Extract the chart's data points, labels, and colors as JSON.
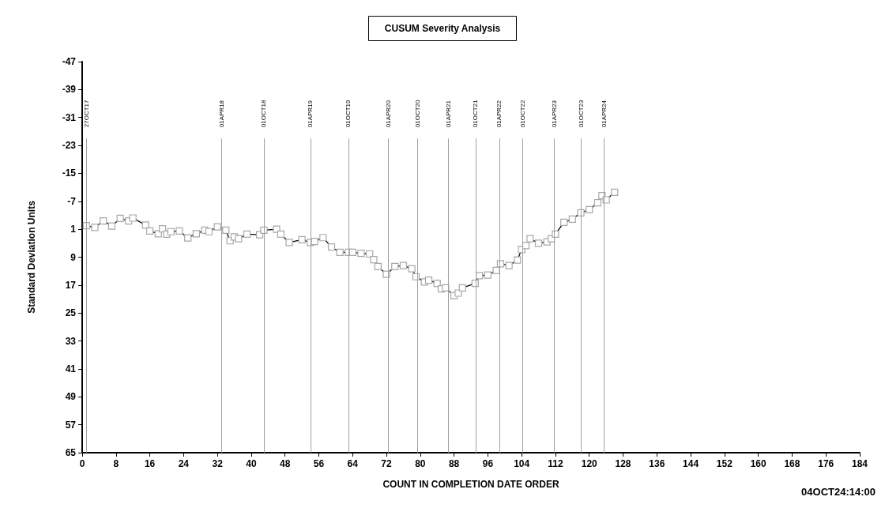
{
  "chart_data": {
    "type": "line",
    "title": "CUSUM Severity Analysis",
    "xlabel": "COUNT IN COMPLETION DATE ORDER",
    "ylabel": "Standard Deviation Units",
    "annotations": [
      "04OCT24:14:00"
    ],
    "series": [
      {
        "color": "#000000",
        "x": [
          1,
          3,
          5,
          7,
          9,
          11,
          12,
          15,
          16,
          18,
          19,
          20,
          21,
          23,
          25,
          27,
          29,
          30,
          32,
          34,
          35,
          36,
          37,
          39,
          42,
          43,
          46,
          47,
          49,
          52,
          54,
          55,
          57,
          59,
          61,
          63,
          64,
          66,
          68,
          69,
          70,
          72,
          74,
          76,
          78,
          79,
          81,
          82,
          84,
          85,
          86,
          88,
          89,
          90,
          93,
          94,
          96,
          98,
          99,
          101,
          103,
          104,
          105,
          106,
          108,
          110,
          111,
          112,
          114,
          116,
          118,
          120,
          122,
          123,
          124,
          126
        ],
        "values": [
          0,
          0.5,
          -1.4,
          0.1,
          -2.1,
          -1.4,
          -2.2,
          -0.2,
          1.5,
          2.3,
          0.9,
          2.4,
          1.7,
          1.5,
          3.5,
          2.3,
          1.3,
          1.7,
          0.3,
          1.3,
          4.3,
          3.2,
          3.7,
          2.4,
          2.6,
          1.3,
          1,
          2.4,
          4.8,
          4,
          4.8,
          4.5,
          3.4,
          6.1,
          7.6,
          7.6,
          7.6,
          7.9,
          8.1,
          9.7,
          11.7,
          13.9,
          11.7,
          11.4,
          12.3,
          14.6,
          16.1,
          15.6,
          16.5,
          18.1,
          17.8,
          20,
          19.3,
          17.8,
          16.5,
          14.3,
          14.1,
          12.8,
          10.9,
          11.4,
          9.8,
          6.8,
          5.7,
          3.7,
          5,
          4.6,
          3.7,
          2.4,
          -1,
          -1.9,
          -3.7,
          -4.6,
          -6.6,
          -8.6,
          -7.4,
          -9.6
        ]
      }
    ],
    "marker": "square",
    "line_style": "solid",
    "grid": false,
    "xlim": [
      0,
      184
    ],
    "xticks": [
      0,
      8,
      16,
      24,
      32,
      40,
      48,
      56,
      64,
      72,
      80,
      88,
      96,
      104,
      112,
      120,
      128,
      136,
      144,
      152,
      160,
      168,
      176,
      184
    ],
    "ylim": [
      65,
      -47
    ],
    "yticks": [
      -47,
      -39,
      -31,
      -23,
      -15,
      -7,
      1,
      9,
      17,
      25,
      33,
      41,
      49,
      57,
      65
    ],
    "ref_lines": [
      {
        "axis": "x",
        "value": 1,
        "label": "27OCT17",
        "color": "#a0a0a0"
      },
      {
        "axis": "x",
        "value": 33,
        "label": "01APR18",
        "color": "#a0a0a0"
      },
      {
        "axis": "x",
        "value": 43,
        "label": "01OCT18",
        "color": "#a0a0a0"
      },
      {
        "axis": "x",
        "value": 54,
        "label": "01APR19",
        "color": "#a0a0a0"
      },
      {
        "axis": "x",
        "value": 63,
        "label": "01OCT19",
        "color": "#a0a0a0"
      },
      {
        "axis": "x",
        "value": 72.4,
        "label": "01APR20",
        "color": "#a0a0a0"
      },
      {
        "axis": "x",
        "value": 79.4,
        "label": "01OCT20",
        "color": "#a0a0a0"
      },
      {
        "axis": "x",
        "value": 86.7,
        "label": "01APR21",
        "color": "#a0a0a0"
      },
      {
        "axis": "x",
        "value": 93.1,
        "label": "01OCT21",
        "color": "#a0a0a0"
      },
      {
        "axis": "x",
        "value": 98.7,
        "label": "01APR22",
        "color": "#a0a0a0"
      },
      {
        "axis": "x",
        "value": 104.2,
        "label": "01OCT22",
        "color": "#a0a0a0"
      },
      {
        "axis": "x",
        "value": 111.7,
        "label": "01APR23",
        "color": "#a0a0a0"
      },
      {
        "axis": "x",
        "value": 118.1,
        "label": "01OCT23",
        "color": "#a0a0a0"
      },
      {
        "axis": "x",
        "value": 123.5,
        "label": "01APR24",
        "color": "#a0a0a0"
      }
    ]
  }
}
